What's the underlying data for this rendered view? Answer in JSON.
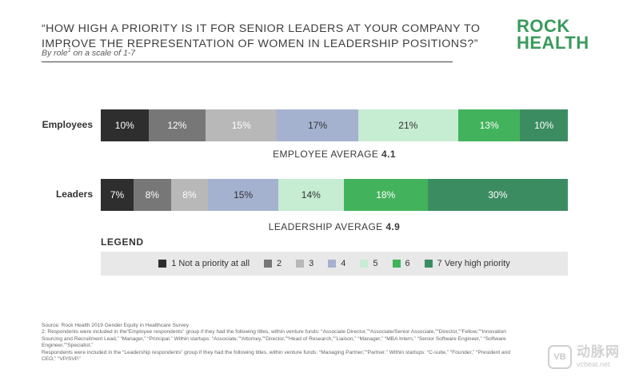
{
  "header": {
    "title": "“HOW HIGH A PRIORITY IS IT FOR SENIOR LEADERS AT YOUR COMPANY TO\nIMPROVE THE REPRESENTATION OF WOMEN IN LEADERSHIP POSITIONS?”",
    "subtitle_pre": "By role",
    "subtitle_sup": "1",
    "subtitle_post": " on a scale of 1-7"
  },
  "logo": {
    "line1": "ROCK",
    "line2": "HEALTH"
  },
  "chart_data": {
    "type": "bar",
    "orientation": "horizontal-stacked-100",
    "categories": [
      "Employees",
      "Leaders"
    ],
    "series": [
      {
        "name": "1",
        "values": [
          10,
          7
        ],
        "labels": [
          "10%",
          "7%"
        ],
        "color": "#2e2e2e",
        "text_color": "#ffffff"
      },
      {
        "name": "2",
        "values": [
          12,
          8
        ],
        "labels": [
          "12%",
          "8%"
        ],
        "color": "#777777",
        "text_color": "#ffffff"
      },
      {
        "name": "3",
        "values": [
          15,
          8
        ],
        "labels": [
          "15%",
          "8%"
        ],
        "color": "#b8b8b8",
        "text_color": "#ffffff"
      },
      {
        "name": "4",
        "values": [
          17,
          15
        ],
        "labels": [
          "17%",
          "15%"
        ],
        "color": "#a4b2cf",
        "text_color": "#333333"
      },
      {
        "name": "5",
        "values": [
          21,
          14
        ],
        "labels": [
          "21%",
          "14%"
        ],
        "color": "#c6ecd2",
        "text_color": "#333333"
      },
      {
        "name": "6",
        "values": [
          13,
          18
        ],
        "labels": [
          "13%",
          "18%"
        ],
        "color": "#42b35c",
        "text_color": "#ffffff"
      },
      {
        "name": "7",
        "values": [
          10,
          30
        ],
        "labels": [
          "10%",
          "30%"
        ],
        "color": "#3c8c62",
        "text_color": "#ffffff"
      }
    ],
    "averages": [
      {
        "label": "EMPLOYEE AVERAGE ",
        "value": "4.1"
      },
      {
        "label": "LEADERSHIP AVERAGE ",
        "value": "4.9"
      }
    ]
  },
  "legend": {
    "title": "LEGEND",
    "items": [
      {
        "key": "1",
        "text": "Not a priority at all",
        "color": "#2e2e2e"
      },
      {
        "key": "2",
        "text": "",
        "color": "#777777"
      },
      {
        "key": "3",
        "text": "",
        "color": "#b8b8b8"
      },
      {
        "key": "4",
        "text": "",
        "color": "#a4b2cf"
      },
      {
        "key": "5",
        "text": "",
        "color": "#c6ecd2"
      },
      {
        "key": "6",
        "text": "",
        "color": "#42b35c"
      },
      {
        "key": "7",
        "text": "Very high priority",
        "color": "#3c8c62"
      }
    ]
  },
  "footnotes": [
    "Source: Rock Health 2019 Gender Equity in Healthcare Survey",
    "2: Respondents were included in the“Employee respondents” group if they had the following titles, within venture funds: “Associate Director,”“Associate/Senior Associate,”“Director,”“Fellow,”“Innovation Sourcing and Recruitment Lead,” “Manager,” “Principal.” Within startups: “Associate,”“Attorney,”“Director,”“Head of Research,”“Liaison,” “Manager,” “MBA Intern,” “Senior Software Engineer,” “Software Engineer,”“Specialist.”",
    "Respondents were included in the “Leadership respondents” group if they had the following titles, within venture funds: “Managing Partner,”“Partner.” Within startups: “C-suite,” “Founder,” “President and CEO,” “VP/SVP.”"
  ],
  "watermark": {
    "mark": "VB",
    "name": "动脉网",
    "site": "vcbeat.net"
  }
}
